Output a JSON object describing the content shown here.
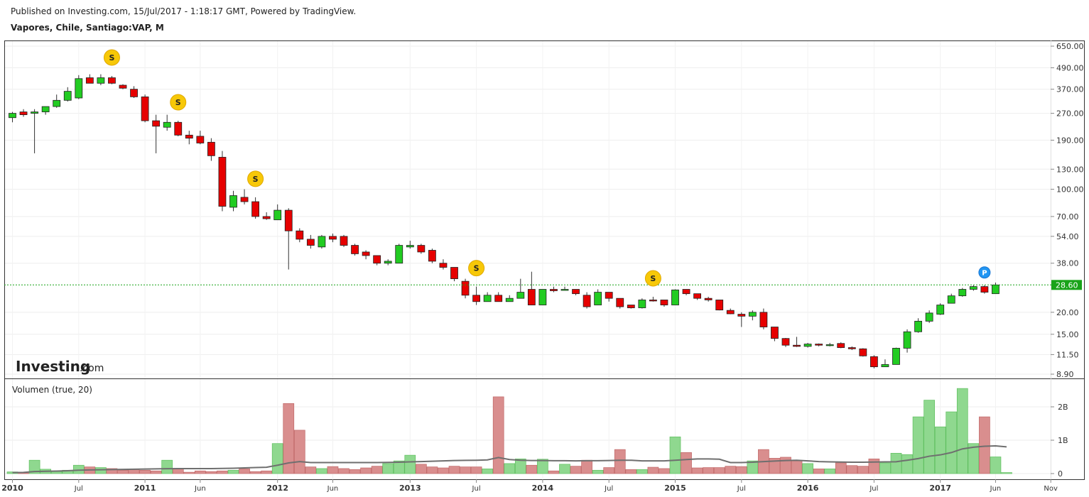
{
  "header": {
    "published": "Published on Investing.com, 15/Jul/2017 - 1:18:17 GMT, Powered by TradingView.",
    "symbol": "Vapores, Chile, Santiago:VAP, M"
  },
  "watermark": {
    "brand": "Investing",
    "suffix": ".com"
  },
  "volume_panel": {
    "label": "Volumen (true, 20)"
  },
  "chart_data": [
    {
      "type": "candlestick",
      "y_scale": "log",
      "y_ticks": [
        "650.00",
        "490.00",
        "370.00",
        "270.00",
        "190.00",
        "130.00",
        "100.00",
        "70.00",
        "54.00",
        "38.00",
        "20.00",
        "15.00",
        "11.50",
        "8.90"
      ],
      "last_price_label": "28.60",
      "x_tick_labels": [
        "2010",
        "Jul",
        "2011",
        "Jun",
        "2012",
        "Jun",
        "2013",
        "Jul",
        "2014",
        "Jul",
        "2015",
        "Jul",
        "2016",
        "Jul",
        "2017",
        "Jun",
        "Nov"
      ],
      "markers": [
        {
          "symbol": "S",
          "month_index": 9
        },
        {
          "symbol": "S",
          "month_index": 15
        },
        {
          "symbol": "S",
          "month_index": 22
        },
        {
          "symbol": "S",
          "month_index": 42
        },
        {
          "symbol": "S",
          "month_index": 58
        },
        {
          "symbol": "P",
          "month_index": 88
        }
      ],
      "candles": [
        {
          "o": 255,
          "h": 275,
          "l": 240,
          "c": 270
        },
        {
          "o": 275,
          "h": 285,
          "l": 258,
          "c": 265
        },
        {
          "o": 270,
          "h": 285,
          "l": 160,
          "c": 275
        },
        {
          "o": 275,
          "h": 295,
          "l": 265,
          "c": 295
        },
        {
          "o": 295,
          "h": 345,
          "l": 290,
          "c": 320
        },
        {
          "o": 320,
          "h": 380,
          "l": 315,
          "c": 360
        },
        {
          "o": 330,
          "h": 445,
          "l": 325,
          "c": 425
        },
        {
          "o": 430,
          "h": 450,
          "l": 400,
          "c": 400
        },
        {
          "o": 400,
          "h": 450,
          "l": 390,
          "c": 430
        },
        {
          "o": 430,
          "h": 440,
          "l": 395,
          "c": 400
        },
        {
          "o": 390,
          "h": 395,
          "l": 370,
          "c": 375
        },
        {
          "o": 370,
          "h": 385,
          "l": 330,
          "c": 335
        },
        {
          "o": 335,
          "h": 345,
          "l": 240,
          "c": 245
        },
        {
          "o": 245,
          "h": 265,
          "l": 160,
          "c": 228
        },
        {
          "o": 225,
          "h": 265,
          "l": 215,
          "c": 240
        },
        {
          "o": 240,
          "h": 245,
          "l": 200,
          "c": 203
        },
        {
          "o": 203,
          "h": 215,
          "l": 180,
          "c": 195
        },
        {
          "o": 200,
          "h": 215,
          "l": 180,
          "c": 183
        },
        {
          "o": 185,
          "h": 195,
          "l": 145,
          "c": 155
        },
        {
          "o": 152,
          "h": 165,
          "l": 75,
          "c": 80
        },
        {
          "o": 79,
          "h": 98,
          "l": 75,
          "c": 92
        },
        {
          "o": 90,
          "h": 100,
          "l": 82,
          "c": 85
        },
        {
          "o": 85,
          "h": 90,
          "l": 68,
          "c": 70
        },
        {
          "o": 70,
          "h": 74,
          "l": 67,
          "c": 68
        },
        {
          "o": 67,
          "h": 82,
          "l": 67,
          "c": 76
        },
        {
          "o": 76,
          "h": 78,
          "l": 35,
          "c": 58
        },
        {
          "o": 58,
          "h": 60,
          "l": 50,
          "c": 52
        },
        {
          "o": 52,
          "h": 55,
          "l": 46,
          "c": 48
        },
        {
          "o": 47,
          "h": 55,
          "l": 46,
          "c": 54
        },
        {
          "o": 54,
          "h": 56,
          "l": 50,
          "c": 52
        },
        {
          "o": 54,
          "h": 55,
          "l": 47,
          "c": 48
        },
        {
          "o": 48,
          "h": 49,
          "l": 42,
          "c": 43
        },
        {
          "o": 44,
          "h": 45,
          "l": 40,
          "c": 42
        },
        {
          "o": 42,
          "h": 42,
          "l": 37,
          "c": 38
        },
        {
          "o": 38,
          "h": 40,
          "l": 37,
          "c": 39
        },
        {
          "o": 38,
          "h": 49,
          "l": 38,
          "c": 48
        },
        {
          "o": 47,
          "h": 51,
          "l": 46,
          "c": 48
        },
        {
          "o": 48,
          "h": 49,
          "l": 43,
          "c": 44
        },
        {
          "o": 45,
          "h": 46,
          "l": 38,
          "c": 39
        },
        {
          "o": 38,
          "h": 40,
          "l": 35,
          "c": 36
        },
        {
          "o": 36,
          "h": 36,
          "l": 30,
          "c": 31
        },
        {
          "o": 30,
          "h": 31,
          "l": 24,
          "c": 25
        },
        {
          "o": 25,
          "h": 28,
          "l": 22,
          "c": 23
        },
        {
          "o": 23,
          "h": 26,
          "l": 23,
          "c": 25
        },
        {
          "o": 25,
          "h": 26,
          "l": 23,
          "c": 23
        },
        {
          "o": 23,
          "h": 25,
          "l": 23,
          "c": 24
        },
        {
          "o": 24,
          "h": 31,
          "l": 24,
          "c": 26
        },
        {
          "o": 27,
          "h": 34,
          "l": 22,
          "c": 22
        },
        {
          "o": 22,
          "h": 27,
          "l": 22,
          "c": 27
        },
        {
          "o": 27,
          "h": 28,
          "l": 26,
          "c": 26.5
        },
        {
          "o": 27,
          "h": 28,
          "l": 27,
          "c": 27
        },
        {
          "o": 27,
          "h": 27,
          "l": 25,
          "c": 25.5
        },
        {
          "o": 25,
          "h": 26,
          "l": 21,
          "c": 21.5
        },
        {
          "o": 22,
          "h": 27,
          "l": 22,
          "c": 26
        },
        {
          "o": 26,
          "h": 26,
          "l": 23,
          "c": 24
        },
        {
          "o": 24,
          "h": 24,
          "l": 21,
          "c": 21.5
        },
        {
          "o": 22,
          "h": 22,
          "l": 21,
          "c": 21.2
        },
        {
          "o": 21.2,
          "h": 24,
          "l": 21,
          "c": 23.5
        },
        {
          "o": 23.5,
          "h": 24.5,
          "l": 23,
          "c": 23.2
        },
        {
          "o": 23.5,
          "h": 23.5,
          "l": 21.5,
          "c": 22
        },
        {
          "o": 22,
          "h": 27,
          "l": 22,
          "c": 26.8
        },
        {
          "o": 27,
          "h": 27,
          "l": 25,
          "c": 25.5
        },
        {
          "o": 25.5,
          "h": 25.5,
          "l": 23.5,
          "c": 24
        },
        {
          "o": 24,
          "h": 24.5,
          "l": 23,
          "c": 23.5
        },
        {
          "o": 23.5,
          "h": 23.5,
          "l": 20.5,
          "c": 20.6
        },
        {
          "o": 20.5,
          "h": 21,
          "l": 19.5,
          "c": 19.6
        },
        {
          "o": 19.5,
          "h": 20,
          "l": 16.5,
          "c": 19
        },
        {
          "o": 19,
          "h": 20.5,
          "l": 18,
          "c": 20
        },
        {
          "o": 20,
          "h": 21,
          "l": 16,
          "c": 16.5
        },
        {
          "o": 16.5,
          "h": 16.5,
          "l": 13.7,
          "c": 14.2
        },
        {
          "o": 14.2,
          "h": 14.3,
          "l": 12.7,
          "c": 13
        },
        {
          "o": 13,
          "h": 14.5,
          "l": 12.7,
          "c": 12.8
        },
        {
          "o": 12.8,
          "h": 13.4,
          "l": 12.6,
          "c": 13.2
        },
        {
          "o": 13.2,
          "h": 13.3,
          "l": 12.8,
          "c": 13
        },
        {
          "o": 13,
          "h": 13.4,
          "l": 12.8,
          "c": 13.1
        },
        {
          "o": 13.3,
          "h": 13.5,
          "l": 12.5,
          "c": 12.6
        },
        {
          "o": 12.6,
          "h": 12.8,
          "l": 12.2,
          "c": 12.4
        },
        {
          "o": 12.4,
          "h": 12.5,
          "l": 11.2,
          "c": 11.3
        },
        {
          "o": 11.2,
          "h": 11.4,
          "l": 9.6,
          "c": 9.8
        },
        {
          "o": 9.8,
          "h": 10.8,
          "l": 9.8,
          "c": 10.1
        },
        {
          "o": 10.1,
          "h": 12.6,
          "l": 10.1,
          "c": 12.5
        },
        {
          "o": 12.5,
          "h": 16,
          "l": 11.8,
          "c": 15.5
        },
        {
          "o": 15.5,
          "h": 18.5,
          "l": 15.3,
          "c": 17.8
        },
        {
          "o": 17.8,
          "h": 20.5,
          "l": 17.4,
          "c": 19.8
        },
        {
          "o": 19.5,
          "h": 22.5,
          "l": 19.3,
          "c": 22
        },
        {
          "o": 22.5,
          "h": 25.5,
          "l": 22.5,
          "c": 24.8
        },
        {
          "o": 24.8,
          "h": 27.5,
          "l": 24.5,
          "c": 27
        },
        {
          "o": 27,
          "h": 28.5,
          "l": 26.5,
          "c": 28
        },
        {
          "o": 28,
          "h": 28.5,
          "l": 25.5,
          "c": 26
        },
        {
          "o": 25.5,
          "h": 29.5,
          "l": 25.5,
          "c": 28.6
        }
      ]
    },
    {
      "type": "bar",
      "title": "Volumen (true, 20)",
      "y_ticks": [
        "2B",
        "1B",
        "0"
      ],
      "ylim": [
        0,
        2600000000
      ],
      "volumes_M": [
        50,
        20,
        400,
        130,
        60,
        100,
        250,
        200,
        180,
        150,
        100,
        120,
        100,
        80,
        400,
        150,
        40,
        80,
        60,
        80,
        100,
        140,
        60,
        80,
        900,
        2100,
        1300,
        200,
        150,
        210,
        150,
        120,
        170,
        220,
        300,
        380,
        550,
        280,
        200,
        170,
        220,
        200,
        200,
        140,
        2300,
        300,
        440,
        250,
        430,
        80,
        280,
        220,
        400,
        100,
        180,
        720,
        120,
        120,
        190,
        150,
        1100,
        630,
        170,
        180,
        180,
        220,
        210,
        380,
        720,
        460,
        490,
        380,
        300,
        140,
        140,
        320,
        240,
        220,
        440,
        320,
        610,
        570,
        1700,
        2200,
        1400,
        1850,
        2550,
        900,
        1700,
        500,
        30
      ],
      "ma_M": [
        30,
        35,
        60,
        70,
        75,
        85,
        100,
        110,
        115,
        120,
        125,
        130,
        135,
        140,
        145,
        150,
        150,
        150,
        150,
        155,
        160,
        170,
        180,
        190,
        250,
        320,
        360,
        330,
        330,
        330,
        330,
        330,
        330,
        330,
        335,
        340,
        350,
        360,
        370,
        380,
        390,
        395,
        400,
        410,
        480,
        420,
        400,
        390,
        390,
        385,
        385,
        380,
        385,
        385,
        390,
        400,
        400,
        380,
        380,
        380,
        400,
        420,
        440,
        440,
        430,
        330,
        330,
        340,
        360,
        375,
        390,
        400,
        380,
        360,
        350,
        345,
        340,
        340,
        345,
        350,
        355,
        400,
        450,
        520,
        560,
        630,
        740,
        790,
        820,
        830,
        800
      ]
    }
  ]
}
